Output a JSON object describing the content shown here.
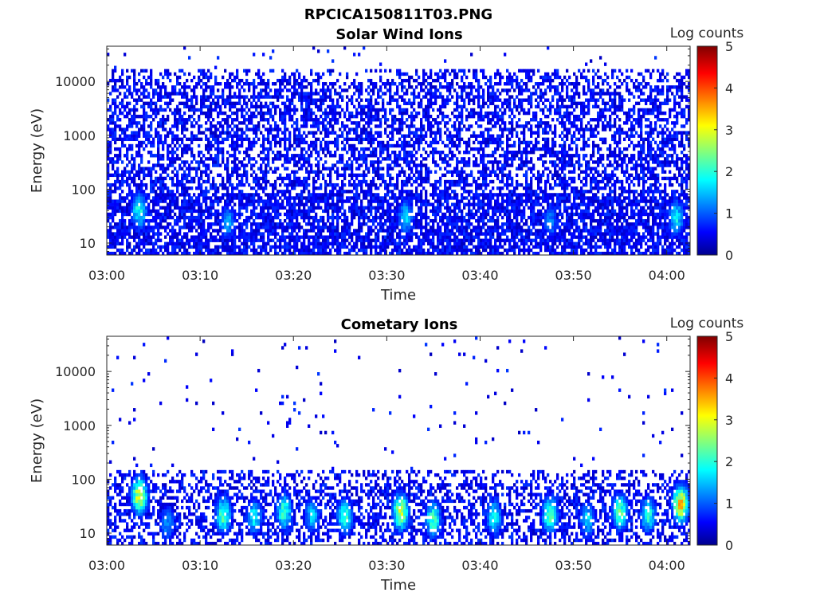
{
  "figure": {
    "filename_title": "RPCICA150811T03.PNG"
  },
  "colormap": {
    "name": "jet",
    "stops": [
      "#00008f",
      "#0000ff",
      "#00ffff",
      "#ffff00",
      "#ff0000",
      "#800000"
    ]
  },
  "chart_data": [
    {
      "type": "heatmap",
      "title": "Solar Wind Ions",
      "xlabel": "Time",
      "ylabel": "Energy (eV)",
      "x_ticks": [
        "03:00",
        "03:10",
        "03:20",
        "03:30",
        "03:40",
        "03:50",
        "04:00"
      ],
      "x_tick_minutes": [
        0,
        10,
        20,
        30,
        40,
        50,
        60
      ],
      "xlim_minutes": [
        0,
        62.5
      ],
      "y_scale": "log",
      "y_ticks": [
        "10",
        "100",
        "1000",
        "10000"
      ],
      "y_tick_values": [
        10,
        100,
        1000,
        10000
      ],
      "ylim": [
        6,
        45000
      ],
      "colorbar": {
        "label": "Log counts",
        "range": [
          0,
          5
        ],
        "ticks": [
          "0",
          "1",
          "2",
          "3",
          "4",
          "5"
        ]
      },
      "description_of_values": "Dense background of ~0.2–1 log counts from ~6 eV to ~15000 eV; enhancements of 1.5–2.5 log counts at 20–80 eV near 03:03, 03:13, 03:32, 04:01",
      "hotspots": [
        {
          "time_min": 3.5,
          "energy_eV": 40,
          "log_counts": 2.2
        },
        {
          "time_min": 13.0,
          "energy_eV": 25,
          "log_counts": 1.6
        },
        {
          "time_min": 32.0,
          "energy_eV": 30,
          "log_counts": 1.8
        },
        {
          "time_min": 47.5,
          "energy_eV": 25,
          "log_counts": 1.4
        },
        {
          "time_min": 61.0,
          "energy_eV": 30,
          "log_counts": 2.0
        }
      ]
    },
    {
      "type": "heatmap",
      "title": "Cometary Ions",
      "xlabel": "Time",
      "ylabel": "Energy (eV)",
      "x_ticks": [
        "03:00",
        "03:10",
        "03:20",
        "03:30",
        "03:40",
        "03:50",
        "04:00"
      ],
      "x_tick_minutes": [
        0,
        10,
        20,
        30,
        40,
        50,
        60
      ],
      "xlim_minutes": [
        0,
        62.5
      ],
      "y_scale": "log",
      "y_ticks": [
        "10",
        "100",
        "1000",
        "10000"
      ],
      "y_tick_values": [
        10,
        100,
        1000,
        10000
      ],
      "ylim": [
        6,
        45000
      ],
      "colorbar": {
        "label": "Log counts",
        "range": [
          0,
          5
        ],
        "ticks": [
          "0",
          "1",
          "2",
          "3",
          "4",
          "5"
        ]
      },
      "description_of_values": "Sparse counts above 150 eV; band of counts from ~6 to ~120 eV with bursts reaching 2–3.5 log counts around 20–60 eV",
      "hotspots": [
        {
          "time_min": 3.5,
          "energy_eV": 50,
          "log_counts": 3.2
        },
        {
          "time_min": 6.5,
          "energy_eV": 15,
          "log_counts": 1.5
        },
        {
          "time_min": 12.5,
          "energy_eV": 22,
          "log_counts": 2.5
        },
        {
          "time_min": 15.8,
          "energy_eV": 20,
          "log_counts": 2.0
        },
        {
          "time_min": 19.0,
          "energy_eV": 25,
          "log_counts": 2.4
        },
        {
          "time_min": 22.0,
          "energy_eV": 22,
          "log_counts": 1.8
        },
        {
          "time_min": 25.5,
          "energy_eV": 20,
          "log_counts": 2.3
        },
        {
          "time_min": 31.5,
          "energy_eV": 25,
          "log_counts": 3.0
        },
        {
          "time_min": 35.0,
          "energy_eV": 18,
          "log_counts": 2.4
        },
        {
          "time_min": 41.5,
          "energy_eV": 20,
          "log_counts": 2.0
        },
        {
          "time_min": 47.5,
          "energy_eV": 22,
          "log_counts": 2.6
        },
        {
          "time_min": 51.5,
          "energy_eV": 18,
          "log_counts": 1.8
        },
        {
          "time_min": 55.0,
          "energy_eV": 25,
          "log_counts": 2.5
        },
        {
          "time_min": 58.0,
          "energy_eV": 22,
          "log_counts": 2.2
        },
        {
          "time_min": 61.5,
          "energy_eV": 35,
          "log_counts": 3.6
        }
      ]
    }
  ]
}
